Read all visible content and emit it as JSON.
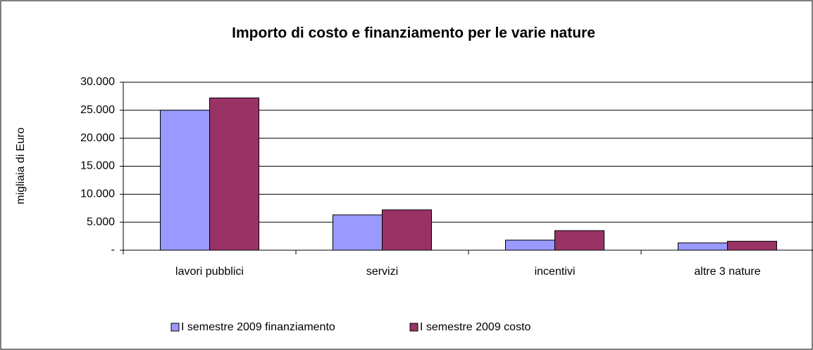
{
  "chart_data": {
    "type": "bar",
    "title": "Importo di costo e finanziamento per le varie nature",
    "y_label": "migliaia di Euro",
    "categories": [
      "lavori pubblici",
      "servizi",
      "incentivi",
      "altre 3 nature"
    ],
    "series": [
      {
        "name": "I semestre 2009 finanziamento",
        "color": "#9999ff",
        "values": [
          25000,
          6300,
          1800,
          1300
        ]
      },
      {
        "name": "I semestre 2009 costo",
        "color": "#993366",
        "values": [
          27200,
          7200,
          3500,
          1600
        ]
      }
    ],
    "ylim": [
      0,
      30000
    ],
    "yticks": [
      {
        "value": 0,
        "label": "-"
      },
      {
        "value": 5000,
        "label": "5.000"
      },
      {
        "value": 10000,
        "label": "10.000"
      },
      {
        "value": 15000,
        "label": "15.000"
      },
      {
        "value": 20000,
        "label": "20.000"
      },
      {
        "value": 25000,
        "label": "25.000"
      },
      {
        "value": 30000,
        "label": "30.000"
      }
    ],
    "grid": true,
    "legend": "bottom"
  }
}
